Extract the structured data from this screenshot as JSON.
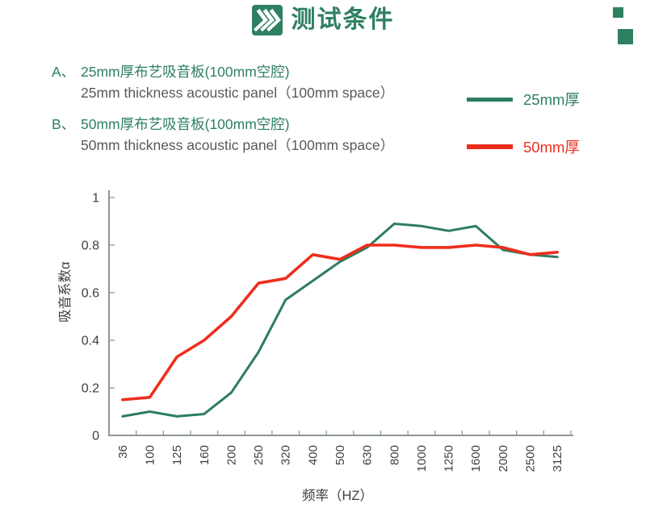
{
  "colors": {
    "accent_green": "#2e8060",
    "accent_red": "#ee2e1d",
    "text_gray": "#58595b",
    "axis_gray": "#8f979a",
    "tick_text": "#3d3f40"
  },
  "header": {
    "title": "测试条件",
    "icon": "triple-chevron-right-icon"
  },
  "conditions": [
    {
      "label": "A、",
      "cn": "25mm厚布艺吸音板(100mm空腔)",
      "en": "25mm thickness acoustic panel（100mm space）"
    },
    {
      "label": "B、",
      "cn": "50mm厚布艺吸音板(100mm空腔)",
      "en": "50mm thickness acoustic panel（100mm space）"
    }
  ],
  "legend": [
    {
      "key": "25mm-thick",
      "label": "25mm厚",
      "color": "#2e7d5e"
    },
    {
      "key": "50mm-thick",
      "label": "50mm厚",
      "color": "#ee2e1d"
    }
  ],
  "chart_data": {
    "type": "line",
    "categories": [
      "36",
      "100",
      "125",
      "160",
      "200",
      "250",
      "320",
      "400",
      "500",
      "630",
      "800",
      "1000",
      "1250",
      "1600",
      "2000",
      "2500",
      "3125"
    ],
    "series": [
      {
        "key": "25mm-thick",
        "name": "25mm厚",
        "color": "#2e7d5e",
        "values": [
          0.08,
          0.1,
          0.08,
          0.09,
          0.18,
          0.35,
          0.57,
          0.65,
          0.73,
          0.79,
          0.89,
          0.88,
          0.86,
          0.88,
          0.78,
          0.76,
          0.75
        ]
      },
      {
        "key": "50mm-thick",
        "name": "50mm厚",
        "color": "#ee2e1d",
        "values": [
          0.15,
          0.16,
          0.33,
          0.4,
          0.5,
          0.64,
          0.66,
          0.76,
          0.74,
          0.8,
          0.8,
          0.79,
          0.79,
          0.8,
          0.79,
          0.76,
          0.77
        ]
      }
    ],
    "xlabel": "频率（HZ）",
    "ylabel": "吸音系数α",
    "ylim": [
      0,
      1
    ],
    "yticks": [
      0,
      0.2,
      0.4,
      0.6,
      0.8,
      1
    ],
    "grid": false,
    "legend_position": "top-right"
  }
}
